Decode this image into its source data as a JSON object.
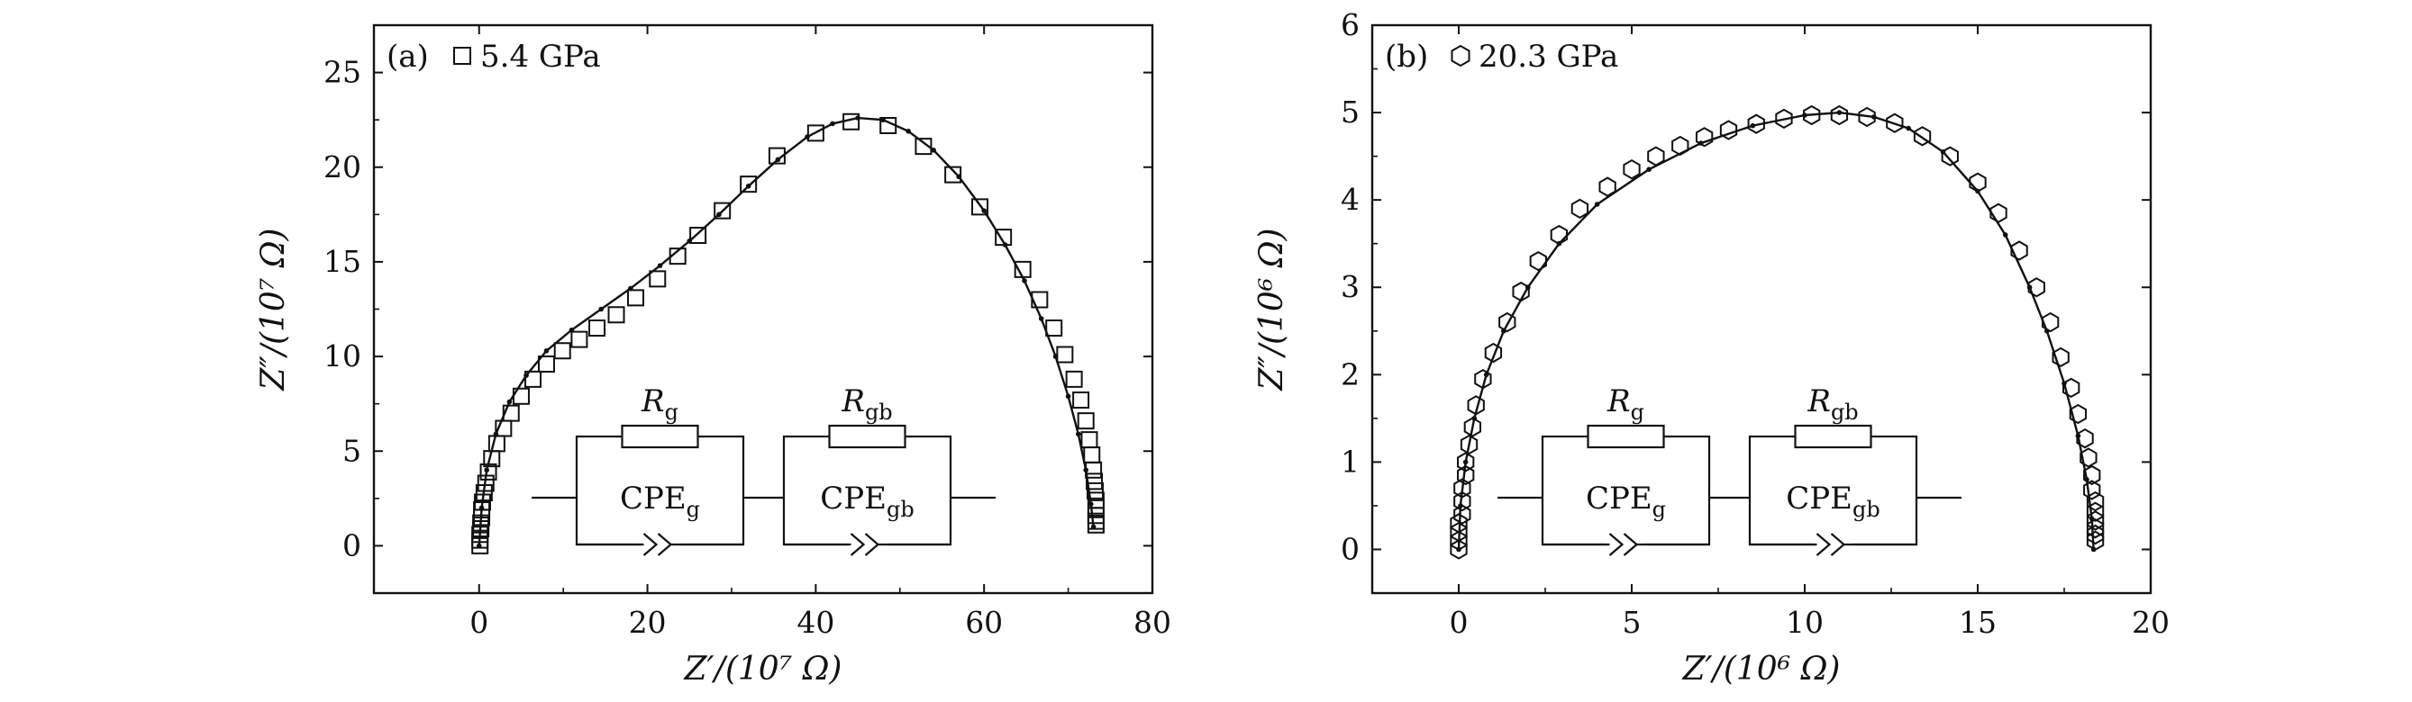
{
  "colors": {
    "ink": "#111111",
    "background": "#ffffff"
  },
  "chart_data": [
    {
      "type": "scatter",
      "panel_label": "(a)",
      "legend_symbol": "square",
      "legend_text": "5.4 GPa",
      "xlabel": "Z′/(10⁷ Ω)",
      "ylabel": "Z″/(10⁷ Ω)",
      "xlim": [
        -12.5,
        80
      ],
      "ylim": [
        -2.5,
        27.5
      ],
      "xticks": [
        0,
        20,
        40,
        60,
        80
      ],
      "yticks": [
        0,
        5,
        10,
        15,
        20,
        25
      ],
      "xtick_labels": [
        "0",
        "20",
        "40",
        "60",
        "80"
      ],
      "ytick_labels": [
        "0",
        "5",
        "10",
        "15",
        "20",
        "25"
      ],
      "series": [
        {
          "kind": "markers",
          "marker": "square",
          "points": [
            [
              0.1,
              0.0
            ],
            [
              0.1,
              0.3
            ],
            [
              0.1,
              0.6
            ],
            [
              0.2,
              0.9
            ],
            [
              0.2,
              1.2
            ],
            [
              0.3,
              1.5
            ],
            [
              0.3,
              1.9
            ],
            [
              0.4,
              2.3
            ],
            [
              0.6,
              2.8
            ],
            [
              0.8,
              3.3
            ],
            [
              1.1,
              3.9
            ],
            [
              1.5,
              4.6
            ],
            [
              2.1,
              5.4
            ],
            [
              2.9,
              6.2
            ],
            [
              3.8,
              7.0
            ],
            [
              5.0,
              7.9
            ],
            [
              6.4,
              8.8
            ],
            [
              8.0,
              9.6
            ],
            [
              9.9,
              10.3
            ],
            [
              11.9,
              10.9
            ],
            [
              14.0,
              11.5
            ],
            [
              16.3,
              12.2
            ],
            [
              18.6,
              13.1
            ],
            [
              21.2,
              14.1
            ],
            [
              23.6,
              15.3
            ],
            [
              26.0,
              16.4
            ],
            [
              28.9,
              17.7
            ],
            [
              32.0,
              19.1
            ],
            [
              35.4,
              20.6
            ],
            [
              40.0,
              21.8
            ],
            [
              44.2,
              22.4
            ],
            [
              48.6,
              22.2
            ],
            [
              52.8,
              21.1
            ],
            [
              56.3,
              19.6
            ],
            [
              59.5,
              17.9
            ],
            [
              62.3,
              16.3
            ],
            [
              64.6,
              14.6
            ],
            [
              66.6,
              13.0
            ],
            [
              68.3,
              11.5
            ],
            [
              69.6,
              10.1
            ],
            [
              70.7,
              8.8
            ],
            [
              71.5,
              7.7
            ],
            [
              72.1,
              6.6
            ],
            [
              72.5,
              5.6
            ],
            [
              72.8,
              4.8
            ],
            [
              73.0,
              4.0
            ],
            [
              73.1,
              3.4
            ],
            [
              73.2,
              2.9
            ],
            [
              73.3,
              2.4
            ],
            [
              73.3,
              2.0
            ],
            [
              73.3,
              1.6
            ],
            [
              73.3,
              1.3
            ],
            [
              73.3,
              1.1
            ]
          ]
        },
        {
          "kind": "fit-line",
          "points": [
            [
              0.0,
              0.0
            ],
            [
              0.3,
              2.0
            ],
            [
              0.9,
              4.0
            ],
            [
              2.0,
              5.9
            ],
            [
              3.6,
              7.6
            ],
            [
              5.6,
              9.0
            ],
            [
              8.0,
              10.3
            ],
            [
              11.0,
              11.4
            ],
            [
              14.5,
              12.5
            ],
            [
              18.0,
              13.6
            ],
            [
              21.5,
              14.8
            ],
            [
              25.0,
              16.1
            ],
            [
              28.5,
              17.5
            ],
            [
              32.0,
              19.0
            ],
            [
              35.5,
              20.4
            ],
            [
              39.0,
              21.6
            ],
            [
              42.0,
              22.3
            ],
            [
              45.0,
              22.6
            ],
            [
              48.0,
              22.5
            ],
            [
              51.0,
              21.9
            ],
            [
              54.0,
              20.9
            ],
            [
              57.0,
              19.5
            ],
            [
              60.0,
              17.7
            ],
            [
              62.5,
              15.9
            ],
            [
              64.8,
              14.0
            ],
            [
              66.8,
              12.0
            ],
            [
              68.5,
              10.0
            ],
            [
              70.0,
              7.9
            ],
            [
              71.2,
              5.9
            ],
            [
              72.1,
              4.0
            ],
            [
              72.7,
              2.2
            ],
            [
              73.0,
              1.0
            ]
          ]
        }
      ]
    },
    {
      "type": "scatter",
      "panel_label": "(b)",
      "legend_symbol": "hexagon",
      "legend_text": "20.3 GPa",
      "xlabel": "Z′/(10⁶ Ω)",
      "ylabel": "Z″/(10⁶ Ω)",
      "xlim": [
        -2.5,
        20
      ],
      "ylim": [
        -0.5,
        6
      ],
      "xticks": [
        0,
        5,
        10,
        15,
        20
      ],
      "yticks": [
        0,
        1,
        2,
        3,
        4,
        5,
        6
      ],
      "xtick_labels": [
        "0",
        "5",
        "10",
        "15",
        "20"
      ],
      "ytick_labels": [
        "0",
        "1",
        "2",
        "3",
        "4",
        "5",
        "6"
      ],
      "series": [
        {
          "kind": "markers",
          "marker": "hexagon",
          "points": [
            [
              0.0,
              0.0
            ],
            [
              0.0,
              0.1
            ],
            [
              0.0,
              0.2
            ],
            [
              0.0,
              0.3
            ],
            [
              0.1,
              0.4
            ],
            [
              0.1,
              0.55
            ],
            [
              0.1,
              0.7
            ],
            [
              0.2,
              0.85
            ],
            [
              0.2,
              1.0
            ],
            [
              0.3,
              1.2
            ],
            [
              0.4,
              1.4
            ],
            [
              0.5,
              1.65
            ],
            [
              0.7,
              1.95
            ],
            [
              1.0,
              2.25
            ],
            [
              1.4,
              2.6
            ],
            [
              1.8,
              2.95
            ],
            [
              2.3,
              3.3
            ],
            [
              2.9,
              3.6
            ],
            [
              3.5,
              3.9
            ],
            [
              4.3,
              4.15
            ],
            [
              5.0,
              4.35
            ],
            [
              5.7,
              4.5
            ],
            [
              6.4,
              4.62
            ],
            [
              7.1,
              4.72
            ],
            [
              7.8,
              4.8
            ],
            [
              8.6,
              4.87
            ],
            [
              9.4,
              4.93
            ],
            [
              10.2,
              4.97
            ],
            [
              11.0,
              4.97
            ],
            [
              11.8,
              4.95
            ],
            [
              12.6,
              4.88
            ],
            [
              13.4,
              4.73
            ],
            [
              14.2,
              4.5
            ],
            [
              15.0,
              4.2
            ],
            [
              15.6,
              3.85
            ],
            [
              16.2,
              3.42
            ],
            [
              16.7,
              3.0
            ],
            [
              17.1,
              2.6
            ],
            [
              17.4,
              2.2
            ],
            [
              17.7,
              1.85
            ],
            [
              17.9,
              1.55
            ],
            [
              18.1,
              1.27
            ],
            [
              18.2,
              1.05
            ],
            [
              18.3,
              0.85
            ],
            [
              18.3,
              0.68
            ],
            [
              18.4,
              0.55
            ],
            [
              18.4,
              0.43
            ],
            [
              18.4,
              0.33
            ],
            [
              18.4,
              0.24
            ],
            [
              18.4,
              0.17
            ],
            [
              18.4,
              0.1
            ]
          ]
        },
        {
          "kind": "fit-line",
          "points": [
            [
              0.0,
              0.0
            ],
            [
              0.05,
              0.5
            ],
            [
              0.2,
              1.0
            ],
            [
              0.45,
              1.5
            ],
            [
              0.8,
              2.0
            ],
            [
              1.3,
              2.5
            ],
            [
              2.0,
              3.0
            ],
            [
              2.9,
              3.5
            ],
            [
              4.0,
              3.95
            ],
            [
              5.5,
              4.35
            ],
            [
              7.0,
              4.65
            ],
            [
              8.5,
              4.85
            ],
            [
              10.0,
              4.97
            ],
            [
              11.0,
              5.0
            ],
            [
              12.0,
              4.95
            ],
            [
              13.0,
              4.82
            ],
            [
              14.0,
              4.55
            ],
            [
              15.0,
              4.1
            ],
            [
              15.8,
              3.6
            ],
            [
              16.5,
              3.0
            ],
            [
              17.0,
              2.5
            ],
            [
              17.5,
              1.9
            ],
            [
              17.9,
              1.3
            ],
            [
              18.15,
              0.8
            ],
            [
              18.3,
              0.35
            ],
            [
              18.35,
              0.0
            ]
          ]
        }
      ]
    }
  ],
  "circuit": {
    "resistor1_label": {
      "main": "R",
      "sub": "g"
    },
    "resistor2_label": {
      "main": "R",
      "sub": "gb"
    },
    "cpe1_label": {
      "main": "CPE",
      "sub": "g"
    },
    "cpe2_label": {
      "main": "CPE",
      "sub": "gb"
    }
  }
}
